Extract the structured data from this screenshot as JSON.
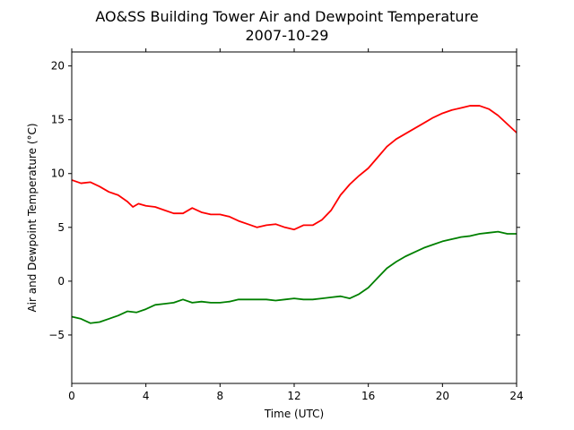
{
  "chart_data": {
    "type": "line",
    "title": "AO&SS Building Tower Air and Dewpoint Temperature",
    "subtitle": "2007-10-29",
    "xlabel": "Time (UTC)",
    "ylabel": "Air and Dewpoint Temperature (°C)",
    "xlim": [
      0,
      24
    ],
    "ylim": [
      -9.5,
      21.3
    ],
    "xticks": [
      0,
      4,
      8,
      12,
      16,
      20,
      24
    ],
    "yticks": [
      -5,
      0,
      5,
      10,
      15,
      20
    ],
    "grid": false,
    "legend": "none",
    "series": [
      {
        "color": "#ff0000",
        "x": [
          0,
          0.5,
          1,
          1.5,
          2,
          2.5,
          3,
          3.3,
          3.6,
          4,
          4.5,
          5,
          5.5,
          6,
          6.5,
          7,
          7.5,
          8,
          8.5,
          9,
          9.5,
          10,
          10.5,
          11,
          11.5,
          12,
          12.5,
          13,
          13.5,
          14,
          14.5,
          15,
          15.5,
          16,
          16.5,
          17,
          17.5,
          18,
          18.5,
          19,
          19.5,
          20,
          20.5,
          21,
          21.5,
          22,
          22.5,
          23,
          23.5,
          24
        ],
        "y": [
          9.4,
          9.1,
          9.2,
          8.8,
          8.3,
          8.0,
          7.4,
          6.9,
          7.2,
          7.0,
          6.9,
          6.6,
          6.3,
          6.3,
          6.8,
          6.4,
          6.2,
          6.2,
          6.0,
          5.6,
          5.3,
          5.0,
          5.2,
          5.3,
          5.0,
          4.8,
          5.2,
          5.2,
          5.7,
          6.6,
          8.0,
          9.0,
          9.8,
          10.5,
          11.5,
          12.5,
          13.2,
          13.7,
          14.2,
          14.7,
          15.2,
          15.6,
          15.9,
          16.1,
          16.3,
          16.3,
          16.0,
          15.4,
          14.6,
          13.8
        ]
      },
      {
        "color": "#008000",
        "x": [
          0,
          0.5,
          1,
          1.5,
          2,
          2.5,
          3,
          3.5,
          4,
          4.5,
          5,
          5.5,
          6,
          6.5,
          7,
          7.5,
          8,
          8.5,
          9,
          9.5,
          10,
          10.5,
          11,
          11.5,
          12,
          12.5,
          13,
          13.5,
          14,
          14.5,
          15,
          15.5,
          16,
          16.5,
          17,
          17.5,
          18,
          18.5,
          19,
          19.5,
          20,
          20.5,
          21,
          21.5,
          22,
          22.5,
          23,
          23.5,
          24
        ],
        "y": [
          -3.3,
          -3.5,
          -3.9,
          -3.8,
          -3.5,
          -3.2,
          -2.8,
          -2.9,
          -2.6,
          -2.2,
          -2.1,
          -2.0,
          -1.7,
          -2.0,
          -1.9,
          -2.0,
          -2.0,
          -1.9,
          -1.7,
          -1.7,
          -1.7,
          -1.7,
          -1.8,
          -1.7,
          -1.6,
          -1.7,
          -1.7,
          -1.6,
          -1.5,
          -1.4,
          -1.6,
          -1.2,
          -0.6,
          0.3,
          1.2,
          1.8,
          2.3,
          2.7,
          3.1,
          3.4,
          3.7,
          3.9,
          4.1,
          4.2,
          4.4,
          4.5,
          4.6,
          4.4,
          4.4
        ]
      }
    ]
  }
}
